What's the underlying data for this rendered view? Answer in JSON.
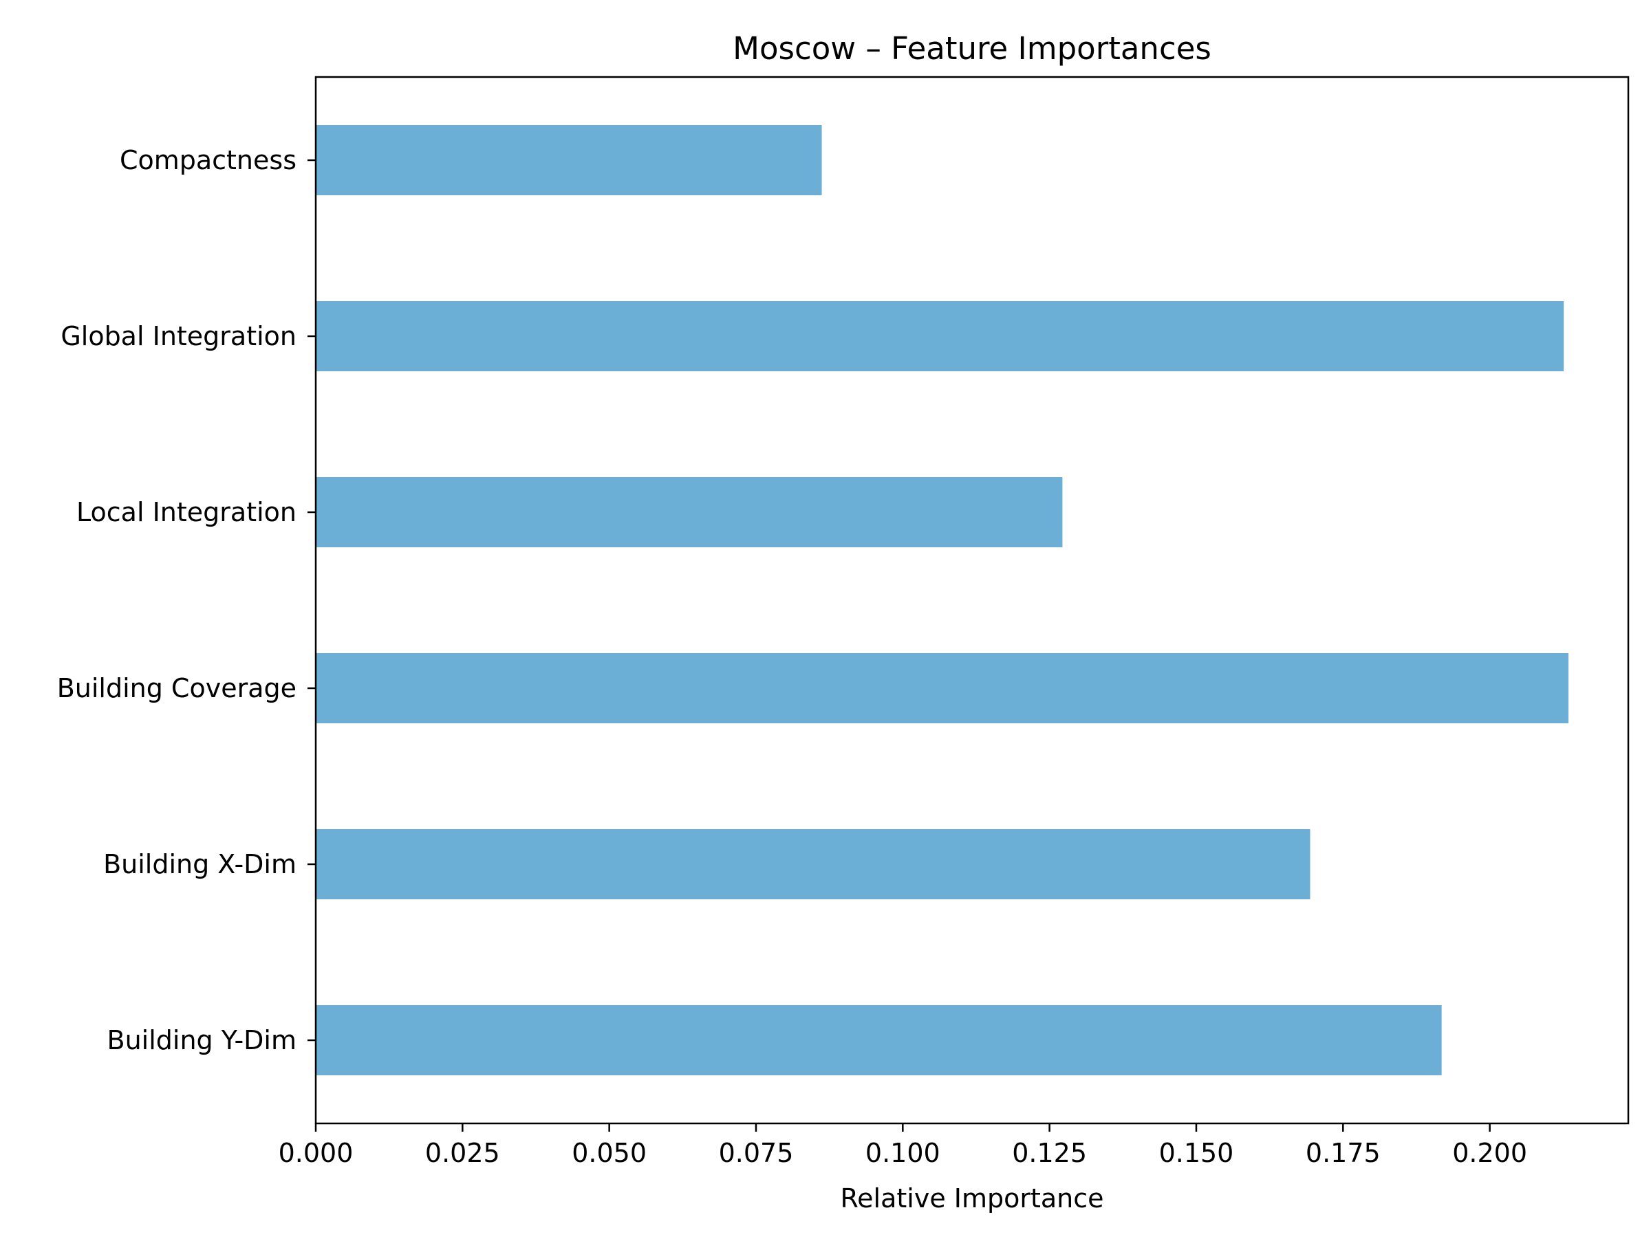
{
  "chart_data": {
    "type": "bar",
    "orientation": "horizontal",
    "title": "Moscow – Feature Importances",
    "xlabel": "Relative Importance",
    "ylabel": "",
    "categories": [
      "Compactness",
      "Global Integration",
      "Local Integration",
      "Building Coverage",
      "Building X-Dim",
      "Building Y-Dim"
    ],
    "values": [
      0.0862,
      0.2126,
      0.1272,
      0.2134,
      0.1694,
      0.1918
    ],
    "xlim": [
      0,
      0.2236
    ],
    "xticks": [
      0.0,
      0.025,
      0.05,
      0.075,
      0.1,
      0.125,
      0.15,
      0.175,
      0.2
    ],
    "xtick_labels": [
      "0.000",
      "0.025",
      "0.050",
      "0.075",
      "0.100",
      "0.125",
      "0.150",
      "0.175",
      "0.200"
    ],
    "grid": false,
    "bar_color": "#6baed6"
  }
}
